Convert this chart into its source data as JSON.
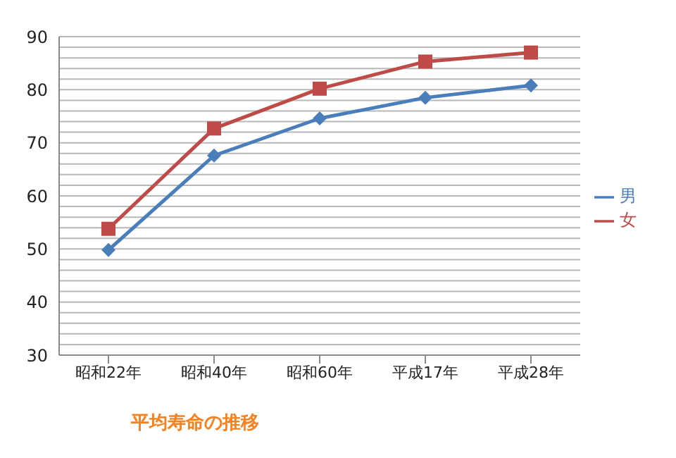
{
  "chart_data": {
    "type": "line",
    "title": "平均寿命の推移",
    "categories": [
      "昭和22年",
      "昭和40年",
      "昭和60年",
      "平成17年",
      "平成28年"
    ],
    "series": [
      {
        "name": "男",
        "color": "#4a7ebb",
        "values": [
          49.8,
          67.6,
          74.6,
          78.5,
          80.8
        ],
        "marker": "diamond"
      },
      {
        "name": "女",
        "color": "#be4b48",
        "values": [
          53.8,
          72.7,
          80.2,
          85.3,
          87.0
        ],
        "marker": "square"
      }
    ],
    "ylim": [
      30,
      90
    ],
    "yticks": [
      30,
      {
        "value": 32,
        "label": null
      },
      {
        "value": 34,
        "label": null
      },
      {
        "value": 36,
        "label": null
      },
      {
        "value": 38,
        "label": null
      },
      40,
      {
        "value": 42,
        "label": null
      },
      {
        "value": 44,
        "label": null
      },
      {
        "value": 46,
        "label": null
      },
      {
        "value": 48,
        "label": null
      },
      50,
      {
        "value": 52,
        "label": null
      },
      {
        "value": 54,
        "label": null
      },
      {
        "value": 56,
        "label": null
      },
      {
        "value": 58,
        "label": null
      },
      60,
      {
        "value": 62,
        "label": null
      },
      {
        "value": 64,
        "label": null
      },
      {
        "value": 66,
        "label": null
      },
      {
        "value": 68,
        "label": null
      },
      70,
      {
        "value": 72,
        "label": null
      },
      {
        "value": 74,
        "label": null
      },
      {
        "value": 76,
        "label": null
      },
      {
        "value": 78,
        "label": null
      },
      80,
      {
        "value": 82,
        "label": null
      },
      {
        "value": 84,
        "label": null
      },
      {
        "value": 86,
        "label": null
      },
      {
        "value": 88,
        "label": null
      },
      90
    ],
    "grid": "y",
    "legend": "right",
    "line_style": "solid"
  }
}
